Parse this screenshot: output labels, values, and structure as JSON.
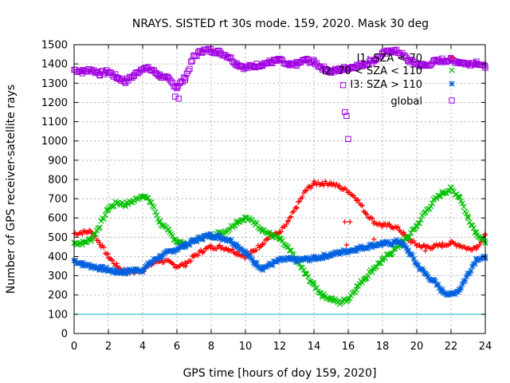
{
  "chart_data": {
    "type": "scatter",
    "title": "NRAYS. SISTED rt 30s mode. 159, 2020. Mask 30 deg",
    "xlabel": "GPS time [hours of doy 159, 2020]",
    "ylabel": "Number of GPS receiver-satellite rays",
    "xlim": [
      0,
      24
    ],
    "ylim": [
      0,
      1500
    ],
    "xticks": [
      0,
      2,
      4,
      6,
      8,
      10,
      12,
      14,
      16,
      18,
      20,
      22,
      24
    ],
    "yticks": [
      0,
      100,
      200,
      300,
      400,
      500,
      600,
      700,
      800,
      900,
      1000,
      1100,
      1200,
      1300,
      1400,
      1500
    ],
    "grid": true,
    "legend_position": "top-right",
    "reference_line": {
      "y": 100,
      "color": "#00c0c0"
    },
    "series": [
      {
        "name": "I1: SZA < 70",
        "color": "#ff0000",
        "marker": "plus",
        "x": [
          0,
          1,
          1.5,
          2,
          2.5,
          3,
          3.5,
          4,
          4.5,
          5,
          5.5,
          6,
          6.5,
          7,
          7.5,
          8,
          8.5,
          9,
          9.5,
          10,
          10.5,
          11,
          11.5,
          12,
          12.5,
          13,
          13.5,
          14,
          14.5,
          15,
          15.5,
          16,
          16.5,
          17,
          17.5,
          18,
          18.5,
          19,
          19.5,
          20,
          20.5,
          21,
          21.5,
          22,
          22.5,
          23,
          23.5,
          24
        ],
        "y": [
          520,
          530,
          470,
          400,
          350,
          320,
          320,
          330,
          360,
          380,
          370,
          350,
          360,
          400,
          430,
          450,
          450,
          440,
          420,
          400,
          430,
          470,
          510,
          520,
          580,
          660,
          740,
          780,
          780,
          780,
          760,
          740,
          700,
          630,
          580,
          560,
          560,
          540,
          490,
          460,
          450,
          450,
          460,
          470,
          460,
          440,
          450,
          510
        ]
      },
      {
        "name": "I2: 70 < SZA < 110",
        "color": "#00c000",
        "marker": "cross",
        "x": [
          0,
          0.5,
          1,
          1.5,
          2,
          2.5,
          3,
          3.5,
          4,
          4.5,
          5,
          5.5,
          6,
          6.5,
          7,
          7.5,
          8,
          8.5,
          9,
          9.5,
          10,
          10.5,
          11,
          11.5,
          12,
          12.5,
          13,
          13.5,
          14,
          14.5,
          15,
          15.5,
          16,
          16.5,
          17,
          17.5,
          18,
          18.5,
          19,
          19.5,
          20,
          20.5,
          21,
          21.5,
          22,
          22.5,
          23,
          23.5,
          24
        ],
        "y": [
          470,
          470,
          490,
          560,
          650,
          680,
          670,
          690,
          720,
          680,
          580,
          530,
          480,
          460,
          480,
          500,
          510,
          520,
          540,
          580,
          600,
          580,
          540,
          510,
          490,
          440,
          380,
          310,
          250,
          200,
          180,
          160,
          180,
          240,
          290,
          340,
          380,
          420,
          460,
          500,
          560,
          630,
          690,
          730,
          750,
          710,
          600,
          520,
          470
        ]
      },
      {
        "name": "I3: SZA > 110",
        "color": "#0060e0",
        "marker": "star",
        "x": [
          0,
          0.5,
          1,
          1.5,
          2,
          2.5,
          3,
          3.5,
          4,
          4.5,
          5,
          5.5,
          6,
          6.5,
          7,
          7.5,
          8,
          8.5,
          9,
          9.5,
          10,
          10.5,
          11,
          11.5,
          12,
          12.5,
          13,
          13.5,
          14,
          14.5,
          15,
          15.5,
          16,
          16.5,
          17,
          17.5,
          18,
          18.5,
          19,
          19.5,
          20,
          20.5,
          21,
          21.5,
          22,
          22.5,
          23,
          23.5,
          24
        ],
        "y": [
          380,
          360,
          350,
          340,
          330,
          320,
          320,
          330,
          330,
          370,
          400,
          420,
          440,
          460,
          480,
          500,
          510,
          500,
          490,
          460,
          420,
          370,
          340,
          360,
          380,
          385,
          380,
          385,
          390,
          400,
          410,
          420,
          430,
          440,
          450,
          460,
          465,
          470,
          480,
          430,
          360,
          310,
          270,
          220,
          200,
          230,
          310,
          390,
          390
        ]
      },
      {
        "name": "global",
        "color": "#a000e0",
        "marker": "open-square",
        "x": [
          0,
          0.5,
          1,
          1.5,
          2,
          2.5,
          3,
          3.5,
          4,
          4.5,
          5,
          5.5,
          6,
          6.5,
          7,
          7.5,
          8,
          8.5,
          9,
          9.5,
          10,
          10.5,
          11,
          11.5,
          12,
          12.5,
          13,
          13.5,
          14,
          14.5,
          15,
          15.5,
          16,
          16.5,
          17,
          17.5,
          18,
          18.5,
          19,
          19.5,
          20,
          20.5,
          21,
          21.5,
          22,
          22.5,
          23,
          23.5,
          24
        ],
        "y": [
          1370,
          1360,
          1370,
          1350,
          1360,
          1330,
          1310,
          1340,
          1380,
          1370,
          1340,
          1320,
          1280,
          1330,
          1440,
          1470,
          1470,
          1460,
          1440,
          1400,
          1380,
          1390,
          1400,
          1410,
          1420,
          1390,
          1400,
          1420,
          1410,
          1380,
          1360,
          1370,
          1380,
          1390,
          1400,
          1420,
          1450,
          1470,
          1460,
          1420,
          1400,
          1390,
          1410,
          1420,
          1420,
          1410,
          1400,
          1410,
          1380
        ]
      }
    ],
    "outliers": [
      {
        "series": "I1: SZA < 70",
        "x": [
          15.8,
          15.9,
          16.1,
          17.5,
          20.5
        ],
        "y": [
          580,
          460,
          580,
          490,
          430
        ]
      },
      {
        "series": "global",
        "x": [
          5.9,
          6.1,
          15.8,
          15.9,
          16.0,
          15.7
        ],
        "y": [
          1230,
          1220,
          1150,
          1130,
          1010,
          1290
        ]
      }
    ]
  }
}
